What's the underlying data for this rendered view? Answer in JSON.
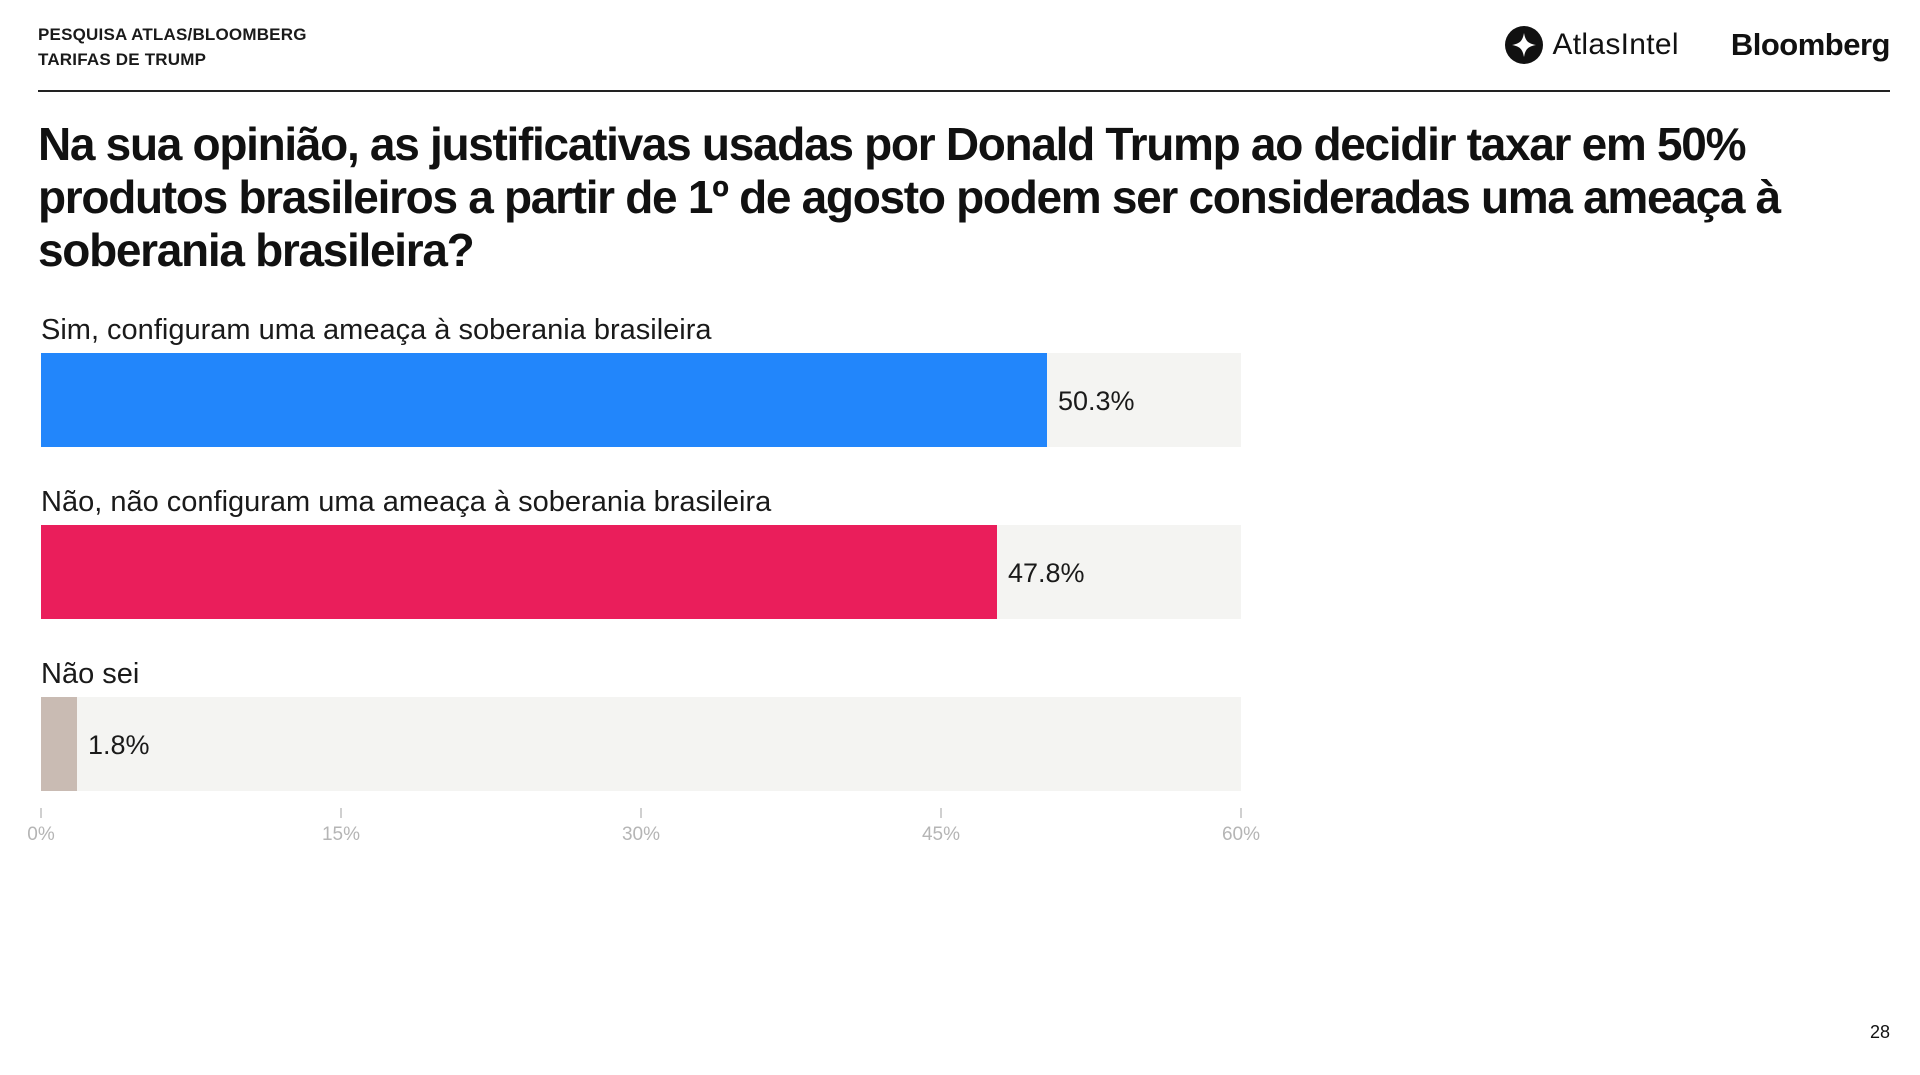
{
  "header": {
    "survey_line1": "PESQUISA ATLAS/BLOOMBERG",
    "survey_line2": "TARIFAS DE TRUMP",
    "atlas_logo_text": "AtlasIntel",
    "bloomberg_logo_text": "Bloomberg"
  },
  "question": "Na sua opinião, as justificativas usadas por Donald Trump ao decidir taxar em 50% produtos brasileiros a partir de 1º de agosto podem ser consideradas uma ameaça à soberania brasileira?",
  "chart_data": {
    "type": "bar",
    "orientation": "horizontal",
    "categories": [
      "Sim, configuram uma ameaça à soberania brasileira",
      "Não, não configuram uma ameaça à soberania brasileira",
      "Não sei"
    ],
    "values": [
      50.3,
      47.8,
      1.8
    ],
    "value_labels": [
      "50.3%",
      "47.8%",
      "1.8%"
    ],
    "colors": [
      "#2286FB",
      "#EA1E5B",
      "#C9BBB3"
    ],
    "track_color": "#F4F4F2",
    "xlim": [
      0,
      60
    ],
    "xticks": [
      0,
      15,
      30,
      45,
      60
    ],
    "xtick_labels": [
      "0%",
      "15%",
      "30%",
      "45%",
      "60%"
    ],
    "title": "",
    "xlabel": "",
    "ylabel": ""
  },
  "page_number": "28"
}
